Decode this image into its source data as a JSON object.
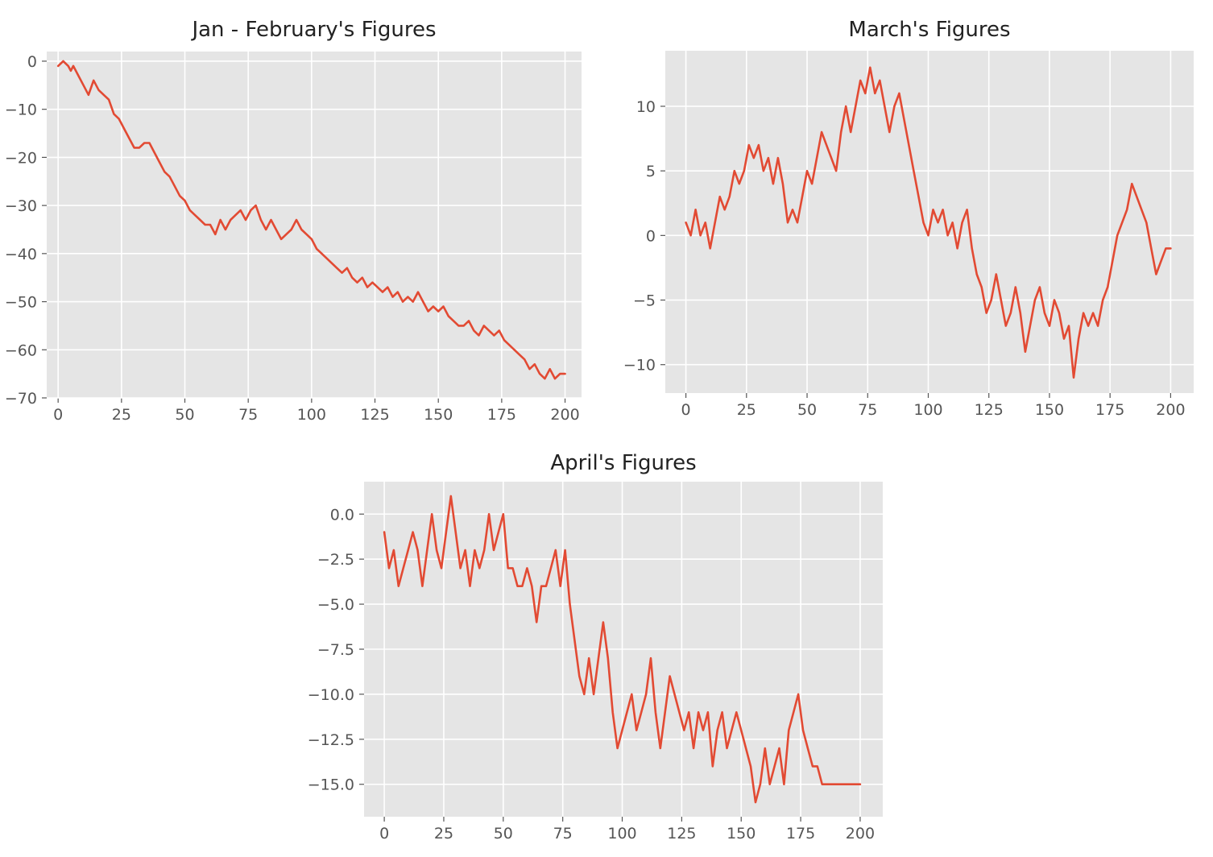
{
  "chart_data": [
    {
      "type": "line",
      "title": "Jan - February's Figures",
      "xlabel": "",
      "ylabel": "",
      "xlim": [
        -4.5,
        206.5
      ],
      "ylim": [
        -70,
        2
      ],
      "xticks": [
        0,
        25,
        50,
        75,
        100,
        125,
        150,
        175,
        200
      ],
      "yticks": [
        0,
        -10,
        -20,
        -30,
        -40,
        -50,
        -60,
        -70
      ],
      "xticklabels": [
        "0",
        "25",
        "50",
        "75",
        "100",
        "125",
        "150",
        "175",
        "200"
      ],
      "yticklabels": [
        "0",
        "−10",
        "−20",
        "−30",
        "−40",
        "−50",
        "−60",
        "−70"
      ],
      "grid": true,
      "style": {
        "background": "#e5e5e5",
        "line_color": "#e24a33",
        "grid_color": "#ffffff"
      },
      "series": [
        {
          "x": [
            0,
            2,
            4,
            5,
            6,
            8,
            10,
            12,
            14,
            16,
            18,
            20,
            22,
            24,
            26,
            28,
            30,
            32,
            34,
            36,
            38,
            40,
            42,
            44,
            46,
            48,
            50,
            52,
            54,
            56,
            58,
            60,
            62,
            64,
            66,
            68,
            70,
            72,
            74,
            76,
            78,
            80,
            82,
            84,
            86,
            88,
            90,
            92,
            94,
            96,
            98,
            100,
            102,
            104,
            106,
            108,
            110,
            112,
            114,
            116,
            118,
            120,
            122,
            124,
            126,
            128,
            130,
            132,
            134,
            136,
            138,
            140,
            142,
            144,
            146,
            148,
            150,
            152,
            154,
            156,
            158,
            160,
            162,
            164,
            166,
            168,
            170,
            172,
            174,
            176,
            178,
            180,
            182,
            184,
            186,
            188,
            190,
            192,
            194,
            196,
            198,
            200
          ],
          "y": [
            -1,
            0,
            -1,
            -2,
            -1,
            -3,
            -5,
            -7,
            -4,
            -6,
            -7,
            -8,
            -11,
            -12,
            -14,
            -16,
            -18,
            -18,
            -17,
            -17,
            -19,
            -21,
            -23,
            -24,
            -26,
            -28,
            -29,
            -31,
            -32,
            -33,
            -34,
            -34,
            -36,
            -33,
            -35,
            -33,
            -32,
            -31,
            -33,
            -31,
            -30,
            -33,
            -35,
            -33,
            -35,
            -37,
            -36,
            -35,
            -33,
            -35,
            -36,
            -37,
            -39,
            -40,
            -41,
            -42,
            -43,
            -44,
            -43,
            -45,
            -46,
            -45,
            -47,
            -46,
            -47,
            -48,
            -47,
            -49,
            -48,
            -50,
            -49,
            -50,
            -48,
            -50,
            -52,
            -51,
            -52,
            -51,
            -53,
            -54,
            -55,
            -55,
            -54,
            -56,
            -57,
            -55,
            -56,
            -57,
            -56,
            -58,
            -59,
            -60,
            -61,
            -62,
            -64,
            -63,
            -65,
            -66,
            -64,
            -66,
            -65,
            -65
          ]
        }
      ]
    },
    {
      "type": "line",
      "title": "March's Figures",
      "xlabel": "",
      "ylabel": "",
      "xlim": [
        -8.5,
        209.5
      ],
      "ylim": [
        -12.2,
        14.3
      ],
      "xticks": [
        0,
        25,
        50,
        75,
        100,
        125,
        150,
        175,
        200
      ],
      "yticks": [
        10,
        5,
        0,
        -5,
        -10
      ],
      "xticklabels": [
        "0",
        "25",
        "50",
        "75",
        "100",
        "125",
        "150",
        "175",
        "200"
      ],
      "yticklabels": [
        "10",
        "5",
        "0",
        "−5",
        "−10"
      ],
      "grid": true,
      "style": {
        "background": "#e5e5e5",
        "line_color": "#e24a33",
        "grid_color": "#ffffff"
      },
      "series": [
        {
          "x": [
            0,
            2,
            4,
            6,
            8,
            10,
            12,
            14,
            16,
            18,
            20,
            22,
            24,
            26,
            28,
            30,
            32,
            34,
            36,
            38,
            40,
            42,
            44,
            46,
            48,
            50,
            52,
            54,
            56,
            58,
            60,
            62,
            64,
            66,
            68,
            70,
            72,
            74,
            76,
            78,
            80,
            82,
            84,
            86,
            88,
            90,
            92,
            94,
            96,
            98,
            100,
            102,
            104,
            106,
            108,
            110,
            112,
            114,
            116,
            118,
            120,
            122,
            124,
            126,
            128,
            130,
            132,
            134,
            136,
            138,
            140,
            142,
            144,
            146,
            148,
            150,
            152,
            154,
            156,
            158,
            160,
            162,
            164,
            166,
            168,
            170,
            172,
            174,
            176,
            178,
            180,
            182,
            184,
            186,
            188,
            190,
            192,
            194,
            196,
            198,
            200
          ],
          "y": [
            1,
            0,
            2,
            0,
            1,
            -1,
            1,
            3,
            2,
            3,
            5,
            4,
            5,
            7,
            6,
            7,
            5,
            6,
            4,
            6,
            4,
            1,
            2,
            1,
            3,
            5,
            4,
            6,
            8,
            7,
            6,
            5,
            8,
            10,
            8,
            10,
            12,
            11,
            13,
            11,
            12,
            10,
            8,
            10,
            11,
            9,
            7,
            5,
            3,
            1,
            0,
            2,
            1,
            2,
            0,
            1,
            -1,
            1,
            2,
            -1,
            -3,
            -4,
            -6,
            -5,
            -3,
            -5,
            -7,
            -6,
            -4,
            -6,
            -9,
            -7,
            -5,
            -4,
            -6,
            -7,
            -5,
            -6,
            -8,
            -7,
            -11,
            -8,
            -6,
            -7,
            -6,
            -7,
            -5,
            -4,
            -2,
            0,
            1,
            2,
            4,
            3,
            2,
            1,
            -1,
            -3,
            -2,
            -1,
            -1
          ]
        }
      ]
    },
    {
      "type": "line",
      "title": "April's Figures",
      "xlabel": "",
      "ylabel": "",
      "xlim": [
        -8.5,
        209.5
      ],
      "ylim": [
        -16.8,
        1.8
      ],
      "xticks": [
        0,
        25,
        50,
        75,
        100,
        125,
        150,
        175,
        200
      ],
      "yticks": [
        0,
        -2.5,
        -5,
        -7.5,
        -10,
        -12.5,
        -15
      ],
      "xticklabels": [
        "0",
        "25",
        "50",
        "75",
        "100",
        "125",
        "150",
        "175",
        "200"
      ],
      "yticklabels": [
        "0.0",
        "−2.5",
        "−5.0",
        "−7.5",
        "−10.0",
        "−12.5",
        "−15.0"
      ],
      "grid": true,
      "style": {
        "background": "#e5e5e5",
        "line_color": "#e24a33",
        "grid_color": "#ffffff"
      },
      "series": [
        {
          "x": [
            0,
            2,
            4,
            6,
            8,
            10,
            12,
            14,
            16,
            18,
            20,
            22,
            24,
            26,
            28,
            30,
            32,
            34,
            36,
            38,
            40,
            42,
            44,
            46,
            48,
            50,
            52,
            54,
            56,
            58,
            60,
            62,
            64,
            66,
            68,
            70,
            72,
            74,
            76,
            78,
            80,
            82,
            84,
            86,
            88,
            90,
            92,
            94,
            96,
            98,
            100,
            102,
            104,
            106,
            108,
            110,
            112,
            114,
            116,
            118,
            120,
            122,
            124,
            126,
            128,
            130,
            132,
            134,
            136,
            138,
            140,
            142,
            144,
            146,
            148,
            150,
            152,
            154,
            156,
            158,
            160,
            162,
            164,
            166,
            168,
            170,
            172,
            174,
            176,
            178,
            180,
            182,
            184,
            186,
            188,
            190,
            192,
            194,
            196,
            198,
            200
          ],
          "y": [
            -1,
            -3,
            -2,
            -4,
            -3,
            -2,
            -1,
            -2,
            -4,
            -2,
            0,
            -2,
            -3,
            -1,
            1,
            -1,
            -3,
            -2,
            -4,
            -2,
            -3,
            -2,
            0,
            -2,
            -1,
            0,
            -3,
            -3,
            -4,
            -4,
            -3,
            -4,
            -6,
            -4,
            -4,
            -3,
            -2,
            -4,
            -2,
            -5,
            -7,
            -9,
            -10,
            -8,
            -10,
            -8,
            -6,
            -8,
            -11,
            -13,
            -12,
            -11,
            -10,
            -12,
            -11,
            -10,
            -8,
            -11,
            -13,
            -11,
            -9,
            -10,
            -11,
            -12,
            -11,
            -13,
            -11,
            -12,
            -11,
            -14,
            -12,
            -11,
            -13,
            -12,
            -11,
            -12,
            -13,
            -14,
            -16,
            -15,
            -13,
            -15,
            -14,
            -13,
            -15,
            -12,
            -11,
            -10,
            -12,
            -13,
            -14,
            -14,
            -15,
            -15,
            -15,
            -15,
            -15,
            -15,
            -15,
            -15,
            -15
          ]
        }
      ]
    }
  ]
}
